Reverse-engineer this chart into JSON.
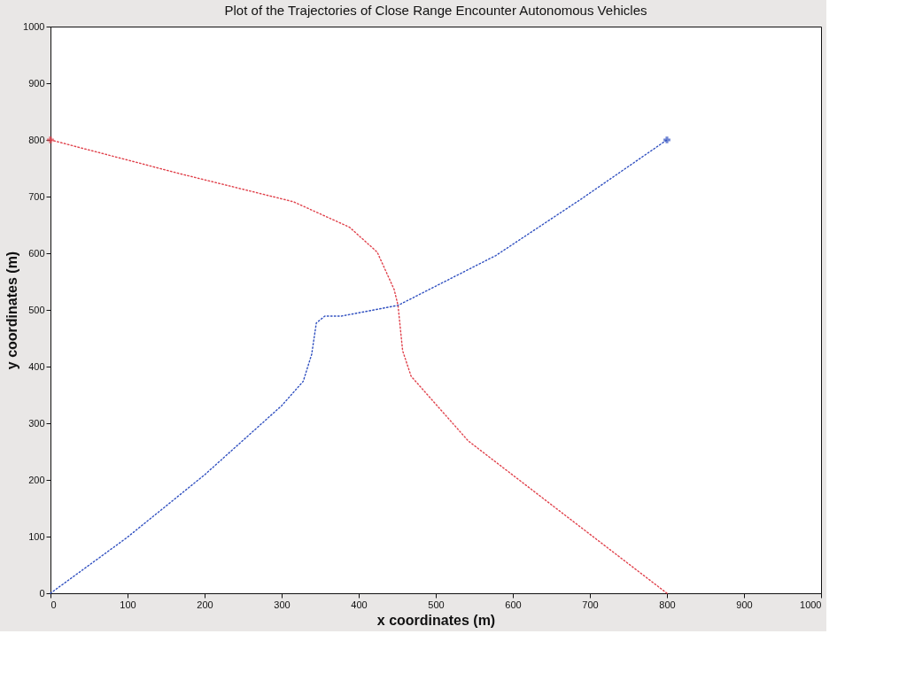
{
  "chart_data": {
    "type": "line",
    "title": "Plot of the Trajectories of Close Range Encounter Autonomous Vehicles",
    "xlabel": "x coordinates (m)",
    "ylabel": "y coordinates (m)",
    "xlim": [
      0,
      1000
    ],
    "ylim": [
      0,
      1000
    ],
    "xticks": [
      0,
      100,
      200,
      300,
      400,
      500,
      600,
      700,
      800,
      900,
      1000
    ],
    "yticks": [
      0,
      100,
      200,
      300,
      400,
      500,
      600,
      700,
      800,
      900,
      1000
    ],
    "grid": false,
    "line_style": "dotted",
    "marker": "none",
    "series": [
      {
        "color": "#e0404a",
        "x": [
          0,
          169,
          315,
          388,
          424,
          446,
          451,
          457,
          468,
          542,
          564,
          680,
          800
        ],
        "values": [
          800,
          740,
          691,
          646,
          602,
          536,
          508,
          428,
          383,
          269,
          246,
          125,
          0
        ]
      },
      {
        "color": "#3050c0",
        "x": [
          0,
          99,
          200,
          300,
          328,
          339,
          345,
          356,
          377,
          451,
          578,
          688,
          800
        ],
        "values": [
          0,
          98,
          209,
          331,
          374,
          422,
          477,
          489,
          489,
          508,
          596,
          695,
          800
        ]
      },
      {
        "type": "scatter",
        "marker": "cross",
        "color": "#e0404a",
        "x": [
          0
        ],
        "values": [
          800
        ]
      },
      {
        "type": "scatter",
        "marker": "cross",
        "color": "#3050c0",
        "x": [
          800
        ],
        "values": [
          800
        ]
      }
    ]
  }
}
